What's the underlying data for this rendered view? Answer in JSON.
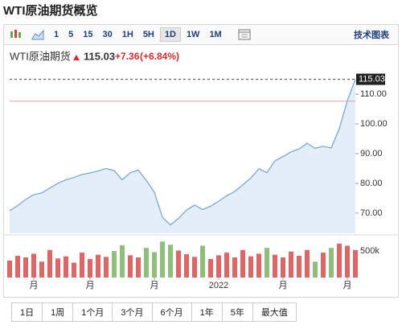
{
  "page": {
    "title": "WTI原油期货概览",
    "intervals": [
      "1",
      "5",
      "15",
      "30",
      "1H",
      "5H",
      "1D",
      "1W",
      "1M"
    ],
    "active_interval": "1D",
    "tech_chart": "技术图表",
    "ranges": [
      "1日",
      "1周",
      "1个月",
      "3个月",
      "6个月",
      "1年",
      "5年",
      "最大值"
    ]
  },
  "chart_data": {
    "type": "area",
    "change": {
      "value": 7.36,
      "label": "+7.36"
    },
    "change_pct": {
      "value": 6.84,
      "label": "(+6.84%)"
    },
    "series": [
      {
        "name": "WTI原油期货",
        "color": "#7aa7d6",
        "fill": "#e4eef8",
        "values": [
          70.8,
          72.5,
          74.6,
          76.2,
          76.8,
          78.4,
          80,
          81.2,
          82,
          83,
          83.5,
          84.2,
          85,
          84.3,
          81.2,
          83.6,
          84.5,
          81,
          77,
          68.6,
          66,
          68.2,
          71,
          72.7,
          71.2,
          72.3,
          74,
          75.8,
          77.3,
          79.5,
          81.8,
          84.9,
          83.6,
          87.6,
          89,
          90.6,
          91.6,
          93.5,
          91.8,
          92.5,
          91.9,
          98.4,
          107.8,
          115.03
        ]
      },
      {
        "axis": "y2",
        "up_color": "#e06666",
        "down_color": "#8fbf7a",
        "values": [
          320000,
          410000,
          380000,
          450000,
          300000,
          520000,
          360000,
          400000,
          280000,
          470000,
          350000,
          430000,
          390000,
          500000,
          610000,
          420000,
          380000,
          560000,
          480000,
          680000,
          620000,
          510000,
          440000,
          390000,
          600000,
          350000,
          420000,
          470000,
          380000,
          520000,
          400000,
          450000,
          560000,
          430000,
          380000,
          490000,
          410000,
          520000,
          300000,
          470000,
          560000,
          640000,
          600000,
          520000
        ]
      }
    ],
    "reference_line": 107.67,
    "ylim": [
      63.2,
      116
    ],
    "yticks": [
      {
        "value": 70,
        "label": "70.00"
      },
      {
        "value": 80,
        "label": "80.00"
      },
      {
        "value": 90,
        "label": "90.00"
      },
      {
        "value": 100,
        "label": "100.00"
      },
      {
        "value": 110,
        "label": "110.00"
      }
    ],
    "y2lim": [
      0,
      760000
    ],
    "y2ticks": [
      {
        "value": 500000,
        "label": "500k"
      }
    ],
    "xticks": [
      {
        "value": 3,
        "label": "月"
      },
      {
        "value": 10,
        "label": "月"
      },
      {
        "value": 18,
        "label": "月"
      },
      {
        "value": 26,
        "label": "2022"
      },
      {
        "value": 34,
        "label": "月"
      },
      {
        "value": 42,
        "label": "月"
      }
    ]
  }
}
